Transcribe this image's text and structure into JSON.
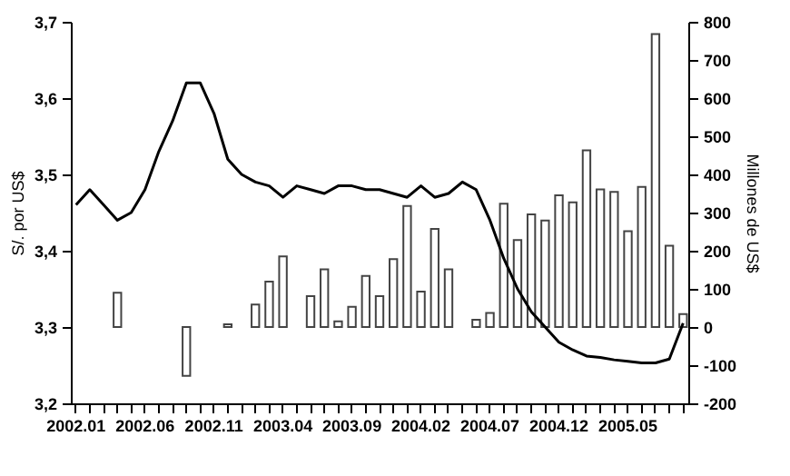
{
  "chart_data": {
    "type": "bar",
    "categories": [
      "2002.01",
      null,
      null,
      null,
      null,
      "2002.06",
      null,
      null,
      null,
      null,
      "2002.11",
      null,
      null,
      null,
      null,
      "2003.04",
      null,
      null,
      null,
      null,
      "2003.09",
      null,
      null,
      null,
      null,
      "2004.02",
      null,
      null,
      null,
      null,
      "2004.07",
      null,
      null,
      null,
      null,
      "2004.12",
      null,
      null,
      null,
      null,
      "2005.05",
      null,
      null,
      null,
      null
    ],
    "series": [
      {
        "axis": "y2",
        "color": "#444444",
        "values": [
          null,
          null,
          null,
          90,
          null,
          null,
          null,
          null,
          -128,
          null,
          null,
          7,
          null,
          59,
          119,
          185,
          null,
          81,
          151,
          15,
          53,
          134,
          81,
          178,
          317,
          93,
          257,
          151,
          null,
          19,
          37,
          323,
          228,
          295,
          279,
          345,
          327,
          463,
          361,
          354,
          251,
          367,
          768,
          213,
          34
        ]
      },
      {
        "type": "line",
        "color": "#000000",
        "values": [
          3.46,
          3.48,
          3.46,
          3.44,
          3.45,
          3.48,
          3.53,
          3.57,
          3.62,
          3.62,
          3.58,
          3.52,
          3.5,
          3.49,
          3.485,
          3.47,
          3.485,
          3.48,
          3.475,
          3.485,
          3.485,
          3.48,
          3.48,
          3.475,
          3.47,
          3.485,
          3.47,
          3.475,
          3.49,
          3.48,
          3.44,
          3.39,
          3.35,
          3.32,
          3.3,
          3.28,
          3.27,
          3.262,
          3.26,
          3.257,
          3.255,
          3.253,
          3.253,
          3.258,
          3.305
        ]
      }
    ],
    "ylabel": "S/. por US$",
    "y2label": "Millones de US$",
    "ylim": [
      3.2,
      3.7
    ],
    "yticks": [
      {
        "value": 3.2,
        "label": "3,2"
      },
      {
        "value": 3.3,
        "label": "3,3"
      },
      {
        "value": 3.4,
        "label": "3,4"
      },
      {
        "value": 3.5,
        "label": "3,5"
      },
      {
        "value": 3.6,
        "label": "3,6"
      },
      {
        "value": 3.7,
        "label": "3,7"
      }
    ],
    "y2lim": [
      -200,
      800
    ],
    "y2ticks": [
      -200,
      -100,
      0,
      100,
      200,
      300,
      400,
      500,
      600,
      700,
      800
    ],
    "grid": false,
    "line_style": "solid"
  }
}
